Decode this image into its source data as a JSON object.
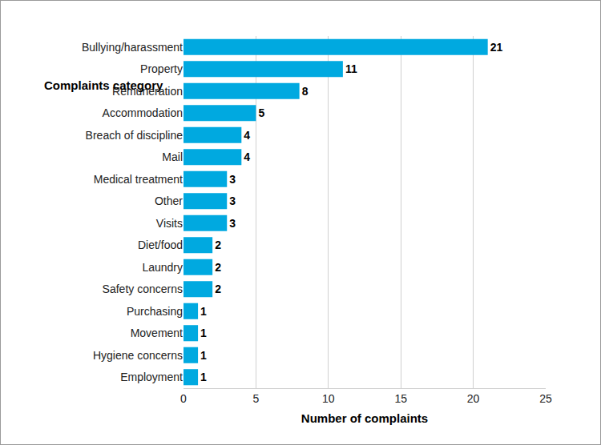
{
  "chart_data": {
    "type": "bar",
    "orientation": "horizontal",
    "ylabel": "Complaints category",
    "xlabel": "Number of complaints",
    "categories": [
      "Bullying/harassment",
      "Property",
      "Remuneration",
      "Accommodation",
      "Breach of discipline",
      "Mail",
      "Medical treatment",
      "Other",
      "Visits",
      "Diet/food",
      "Laundry",
      "Safety concerns",
      "Purchasing",
      "Movement",
      "Hygiene concerns",
      "Employment"
    ],
    "values": [
      21,
      11,
      8,
      5,
      4,
      4,
      3,
      3,
      3,
      2,
      2,
      2,
      1,
      1,
      1,
      1
    ],
    "color": "#00a9e0",
    "xlim": [
      0,
      25
    ],
    "xticks": [
      0,
      5,
      10,
      15,
      20,
      25
    ],
    "grid": true,
    "data_labels": true
  }
}
